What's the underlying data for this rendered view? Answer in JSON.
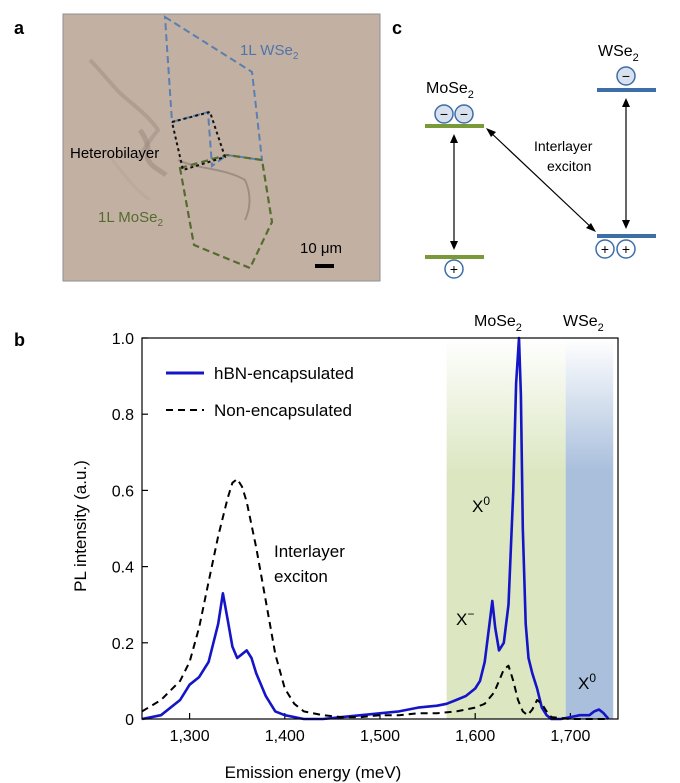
{
  "panel_labels": {
    "a": "a",
    "b": "b",
    "c": "c"
  },
  "panel_a": {
    "label_wse2": "1L WSe",
    "label_wse2_sub": "2",
    "label_heterobilayer": "Heterobilayer",
    "label_mose2": "1L MoSe",
    "label_mose2_sub": "2",
    "scale_bar": "10 μm",
    "colors": {
      "photo_bg": "#c2b1a3",
      "wse2_outline": "#5b7fb0",
      "mose2_outline": "#556b2f",
      "hetero_outline": "#111111"
    }
  },
  "panel_c": {
    "mose2_label": "MoSe",
    "mose2_sub": "2",
    "wse2_label": "WSe",
    "wse2_sub": "2",
    "interlayer_line1": "Interlayer",
    "interlayer_line2": "exciton",
    "electron_symbol": "−",
    "hole_symbol": "+",
    "colors": {
      "mose2_band": "#7a9a3a",
      "wse2_band": "#3d6ea5",
      "particle_fill": "#d9e1ee",
      "particle_stroke": "#3d6ea5"
    }
  },
  "panel_b": {
    "legend": {
      "hbn": "hBN-encapsulated",
      "non": "Non-encapsulated"
    },
    "region_labels": {
      "mose2": "MoSe",
      "mose2_sub": "2",
      "wse2": "WSe",
      "wse2_sub": "2"
    },
    "annotations": {
      "x0_main": "X",
      "x0_main_sup": "0",
      "x_minus": "X",
      "x_minus_sup": "−",
      "x0_wse2": "X",
      "x0_wse2_sup": "0",
      "interlayer_line1": "Interlayer",
      "interlayer_line2": "exciton"
    },
    "colors": {
      "hbn_line": "#1515c8",
      "non_line": "#000000",
      "mose2_band": "#dce7c2",
      "wse2_band": "#a9bfdc"
    }
  },
  "chart_data": {
    "type": "line",
    "xlabel": "Emission energy (meV)",
    "ylabel": "PL intensity (a.u.)",
    "xlim": [
      1250,
      1750
    ],
    "ylim": [
      0,
      1.0
    ],
    "xticks": [
      1300,
      1400,
      1500,
      1600,
      1700
    ],
    "xtick_labels": [
      "1,300",
      "1,400",
      "1,500",
      "1,600",
      "1,700"
    ],
    "yticks": [
      0,
      0.2,
      0.4,
      0.6,
      0.8,
      1.0
    ],
    "ytick_labels": [
      "0",
      "0.2",
      "0.4",
      "0.6",
      "0.8",
      "1.0"
    ],
    "shaded_regions": [
      {
        "label": "MoSe2",
        "x_range": [
          1570,
          1695
        ]
      },
      {
        "label": "WSe2",
        "x_range": [
          1695,
          1745
        ]
      }
    ],
    "legend_position": "top-left",
    "series": [
      {
        "name": "hBN-encapsulated",
        "style": "solid",
        "x": [
          1250,
          1270,
          1290,
          1300,
          1310,
          1320,
          1330,
          1335,
          1340,
          1345,
          1350,
          1355,
          1360,
          1365,
          1370,
          1380,
          1390,
          1400,
          1420,
          1440,
          1460,
          1480,
          1500,
          1520,
          1540,
          1560,
          1570,
          1580,
          1590,
          1600,
          1605,
          1610,
          1615,
          1618,
          1621,
          1625,
          1630,
          1635,
          1640,
          1643,
          1646,
          1648,
          1650,
          1653,
          1656,
          1660,
          1665,
          1670,
          1675,
          1680,
          1690,
          1700,
          1710,
          1720,
          1725,
          1730,
          1735,
          1740
        ],
        "y": [
          0.0,
          0.01,
          0.05,
          0.09,
          0.11,
          0.15,
          0.25,
          0.33,
          0.26,
          0.19,
          0.16,
          0.17,
          0.18,
          0.16,
          0.12,
          0.06,
          0.02,
          0.01,
          0.0,
          0.0,
          0.005,
          0.01,
          0.015,
          0.02,
          0.03,
          0.035,
          0.04,
          0.05,
          0.06,
          0.08,
          0.1,
          0.15,
          0.25,
          0.31,
          0.24,
          0.18,
          0.2,
          0.3,
          0.6,
          0.88,
          1.0,
          0.85,
          0.5,
          0.25,
          0.16,
          0.12,
          0.08,
          0.03,
          0.01,
          0.0,
          0.0,
          0.005,
          0.01,
          0.01,
          0.02,
          0.025,
          0.015,
          0.0
        ]
      },
      {
        "name": "Non-encapsulated",
        "style": "dashed",
        "x": [
          1250,
          1270,
          1290,
          1300,
          1310,
          1320,
          1330,
          1340,
          1345,
          1350,
          1355,
          1360,
          1370,
          1380,
          1390,
          1400,
          1410,
          1420,
          1440,
          1460,
          1480,
          1500,
          1520,
          1540,
          1560,
          1580,
          1600,
          1610,
          1620,
          1630,
          1635,
          1640,
          1645,
          1650,
          1655,
          1660,
          1665,
          1670,
          1675,
          1680,
          1700,
          1720,
          1740
        ],
        "y": [
          0.02,
          0.05,
          0.1,
          0.15,
          0.24,
          0.36,
          0.48,
          0.58,
          0.62,
          0.63,
          0.61,
          0.57,
          0.45,
          0.31,
          0.17,
          0.08,
          0.04,
          0.02,
          0.01,
          0.005,
          0.005,
          0.01,
          0.01,
          0.015,
          0.015,
          0.02,
          0.03,
          0.04,
          0.07,
          0.13,
          0.14,
          0.1,
          0.05,
          0.02,
          0.01,
          0.025,
          0.05,
          0.04,
          0.02,
          0.005,
          0.0,
          0.0,
          0.0
        ]
      }
    ]
  }
}
